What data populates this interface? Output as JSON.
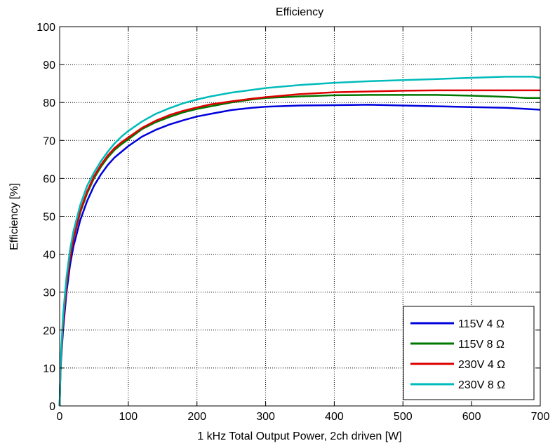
{
  "chart_data": {
    "type": "line",
    "title": "Efficiency",
    "xlabel": "1 kHz Total Output Power, 2ch driven [W]",
    "ylabel": "Efficiency [%]",
    "xlim": [
      0,
      700
    ],
    "ylim": [
      0,
      100
    ],
    "xticks": [
      0,
      100,
      200,
      300,
      400,
      500,
      600,
      700
    ],
    "yticks": [
      0,
      10,
      20,
      30,
      40,
      50,
      60,
      70,
      80,
      90,
      100
    ],
    "grid": true,
    "grid_style": "dotted",
    "legend_position": "bottom-right",
    "series": [
      {
        "name": "115V 4 Ω",
        "color": "#0000dd",
        "points": [
          [
            0,
            0
          ],
          [
            1,
            8
          ],
          [
            2,
            12
          ],
          [
            5,
            20
          ],
          [
            10,
            30
          ],
          [
            15,
            37
          ],
          [
            20,
            42
          ],
          [
            30,
            49
          ],
          [
            40,
            54
          ],
          [
            50,
            58
          ],
          [
            60,
            61
          ],
          [
            70,
            63.5
          ],
          [
            80,
            65.5
          ],
          [
            90,
            67
          ],
          [
            100,
            68.5
          ],
          [
            120,
            71
          ],
          [
            140,
            72.8
          ],
          [
            160,
            74.2
          ],
          [
            180,
            75.3
          ],
          [
            200,
            76.3
          ],
          [
            220,
            77
          ],
          [
            250,
            78
          ],
          [
            280,
            78.6
          ],
          [
            300,
            78.9
          ],
          [
            350,
            79.2
          ],
          [
            400,
            79.3
          ],
          [
            450,
            79.4
          ],
          [
            500,
            79.2
          ],
          [
            550,
            79
          ],
          [
            600,
            78.8
          ],
          [
            650,
            78.6
          ],
          [
            680,
            78.3
          ],
          [
            700,
            78.1
          ]
        ]
      },
      {
        "name": "115V 8 Ω",
        "color": "#007700",
        "points": [
          [
            0,
            0
          ],
          [
            1,
            8
          ],
          [
            2,
            13
          ],
          [
            5,
            22
          ],
          [
            10,
            32
          ],
          [
            15,
            39
          ],
          [
            20,
            44
          ],
          [
            30,
            51
          ],
          [
            40,
            56
          ],
          [
            50,
            60
          ],
          [
            60,
            63
          ],
          [
            70,
            65.5
          ],
          [
            80,
            67.5
          ],
          [
            90,
            69
          ],
          [
            100,
            70.3
          ],
          [
            120,
            73
          ],
          [
            140,
            74.8
          ],
          [
            160,
            76.2
          ],
          [
            180,
            77.4
          ],
          [
            200,
            78.3
          ],
          [
            220,
            79
          ],
          [
            250,
            80
          ],
          [
            280,
            80.8
          ],
          [
            300,
            81.2
          ],
          [
            350,
            81.6
          ],
          [
            400,
            81.9
          ],
          [
            450,
            82
          ],
          [
            500,
            82
          ],
          [
            550,
            82
          ],
          [
            600,
            81.8
          ],
          [
            650,
            81.5
          ],
          [
            680,
            81.2
          ],
          [
            700,
            81.2
          ]
        ]
      },
      {
        "name": "230V 4 Ω",
        "color": "#dd0000",
        "points": [
          [
            0,
            0
          ],
          [
            1,
            8
          ],
          [
            2,
            13
          ],
          [
            5,
            22
          ],
          [
            10,
            32
          ],
          [
            15,
            39
          ],
          [
            20,
            44
          ],
          [
            30,
            51.5
          ],
          [
            40,
            56.5
          ],
          [
            50,
            60.5
          ],
          [
            60,
            63.5
          ],
          [
            70,
            66
          ],
          [
            80,
            68
          ],
          [
            90,
            69.5
          ],
          [
            100,
            70.8
          ],
          [
            120,
            73.3
          ],
          [
            140,
            75.2
          ],
          [
            160,
            76.7
          ],
          [
            180,
            77.8
          ],
          [
            200,
            78.7
          ],
          [
            220,
            79.5
          ],
          [
            250,
            80.3
          ],
          [
            280,
            81
          ],
          [
            300,
            81.4
          ],
          [
            350,
            82.2
          ],
          [
            400,
            82.7
          ],
          [
            450,
            82.9
          ],
          [
            500,
            83.1
          ],
          [
            550,
            83.2
          ],
          [
            600,
            83.2
          ],
          [
            650,
            83.2
          ],
          [
            700,
            83.2
          ]
        ]
      },
      {
        "name": "230V 8 Ω",
        "color": "#00bbbb",
        "points": [
          [
            0,
            0
          ],
          [
            1,
            9
          ],
          [
            2,
            14
          ],
          [
            5,
            24
          ],
          [
            10,
            34
          ],
          [
            15,
            41
          ],
          [
            20,
            46
          ],
          [
            30,
            53
          ],
          [
            40,
            58
          ],
          [
            50,
            61.5
          ],
          [
            60,
            64.5
          ],
          [
            70,
            67
          ],
          [
            80,
            69.2
          ],
          [
            90,
            71
          ],
          [
            100,
            72.5
          ],
          [
            120,
            75
          ],
          [
            140,
            77
          ],
          [
            160,
            78.5
          ],
          [
            180,
            79.8
          ],
          [
            200,
            80.8
          ],
          [
            220,
            81.6
          ],
          [
            250,
            82.6
          ],
          [
            280,
            83.3
          ],
          [
            300,
            83.8
          ],
          [
            350,
            84.6
          ],
          [
            400,
            85.2
          ],
          [
            450,
            85.6
          ],
          [
            500,
            85.9
          ],
          [
            550,
            86.2
          ],
          [
            600,
            86.5
          ],
          [
            650,
            86.8
          ],
          [
            690,
            86.8
          ],
          [
            700,
            86.5
          ]
        ]
      }
    ]
  }
}
